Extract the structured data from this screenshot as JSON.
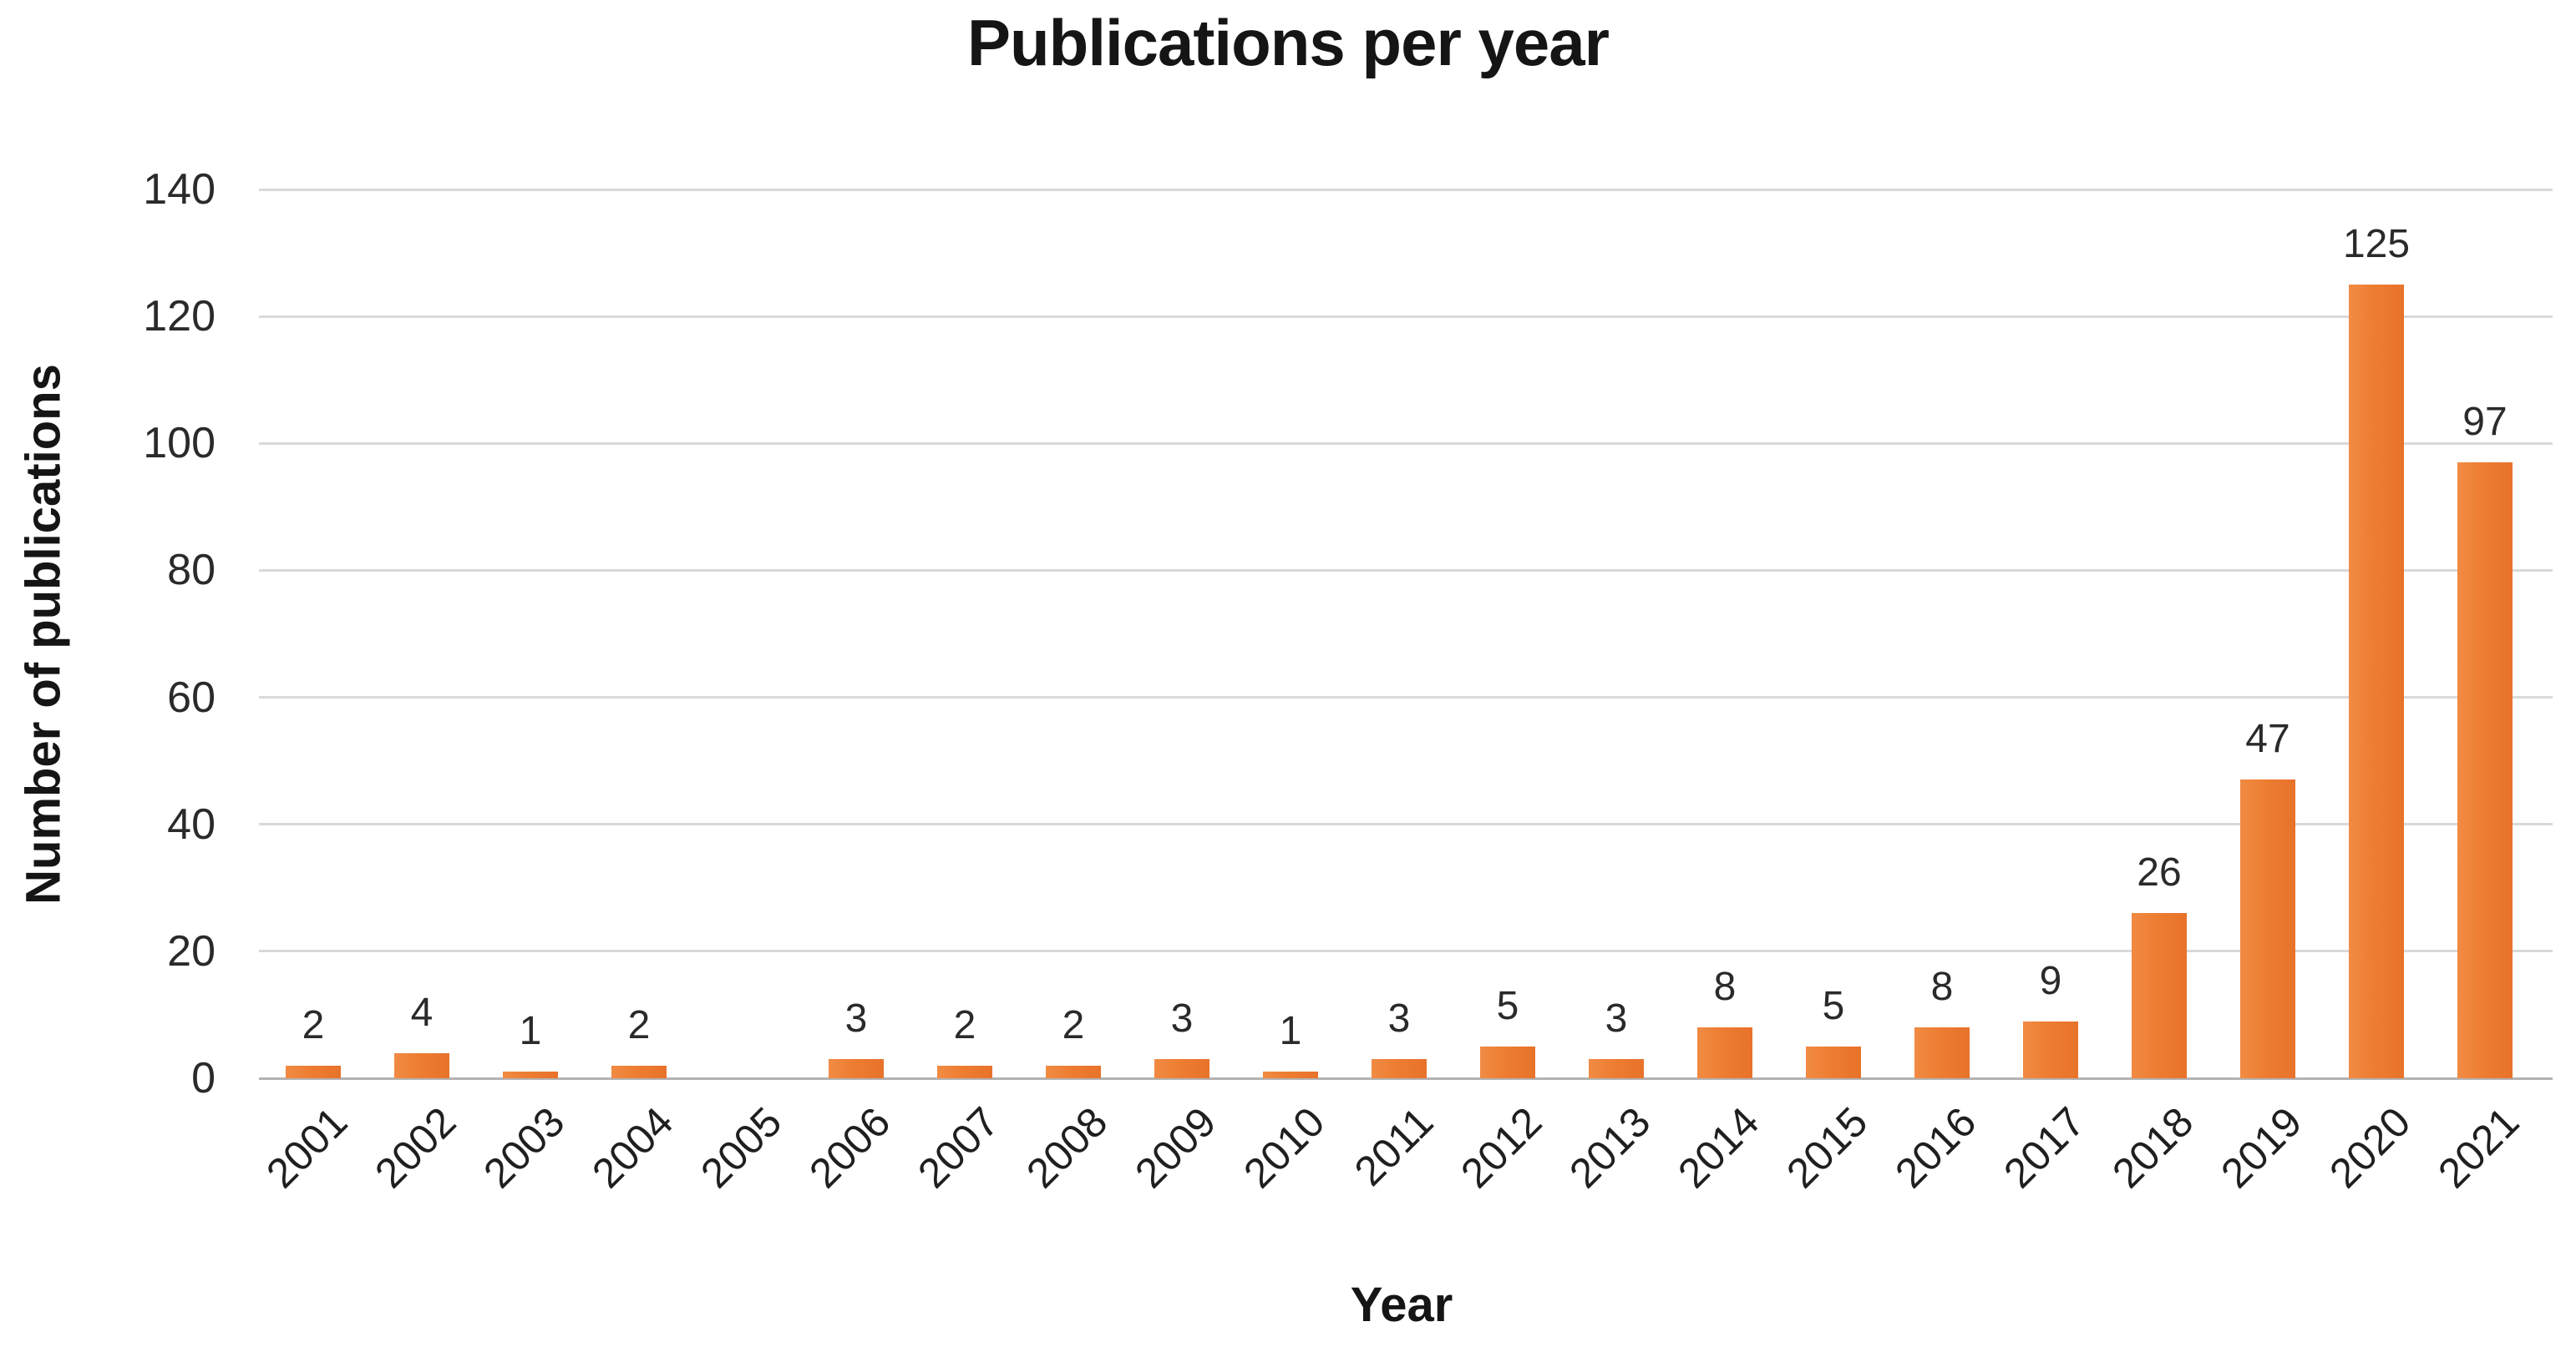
{
  "chart_data": {
    "type": "bar",
    "title": "Publications per year",
    "xlabel": "Year",
    "ylabel": "Number of publications",
    "categories": [
      "2001",
      "2002",
      "2003",
      "2004",
      "2005",
      "2006",
      "2007",
      "2008",
      "2009",
      "2010",
      "2011",
      "2012",
      "2013",
      "2014",
      "2015",
      "2016",
      "2017",
      "2018",
      "2019",
      "2020",
      "2021"
    ],
    "values": [
      2,
      4,
      1,
      2,
      0,
      3,
      2,
      2,
      3,
      1,
      3,
      5,
      3,
      8,
      5,
      8,
      9,
      26,
      47,
      125,
      97
    ],
    "data_labels_shown": true,
    "zero_values_unlabeled": true,
    "ylim": [
      0,
      140
    ],
    "ytick_step": 20,
    "yticks": [
      0,
      20,
      40,
      60,
      80,
      100,
      120,
      140
    ],
    "grid": "horizontal",
    "legend": "none",
    "x_label_rotation_deg": -45
  },
  "colors": {
    "bar_main": "#ED7D31",
    "bar_light": "#F18B44",
    "bar_dark": "#E8722A",
    "gridline": "#D9D9D9",
    "axis_line": "#B3B3B3",
    "text": "#1f1f1f",
    "background": "#ffffff"
  }
}
